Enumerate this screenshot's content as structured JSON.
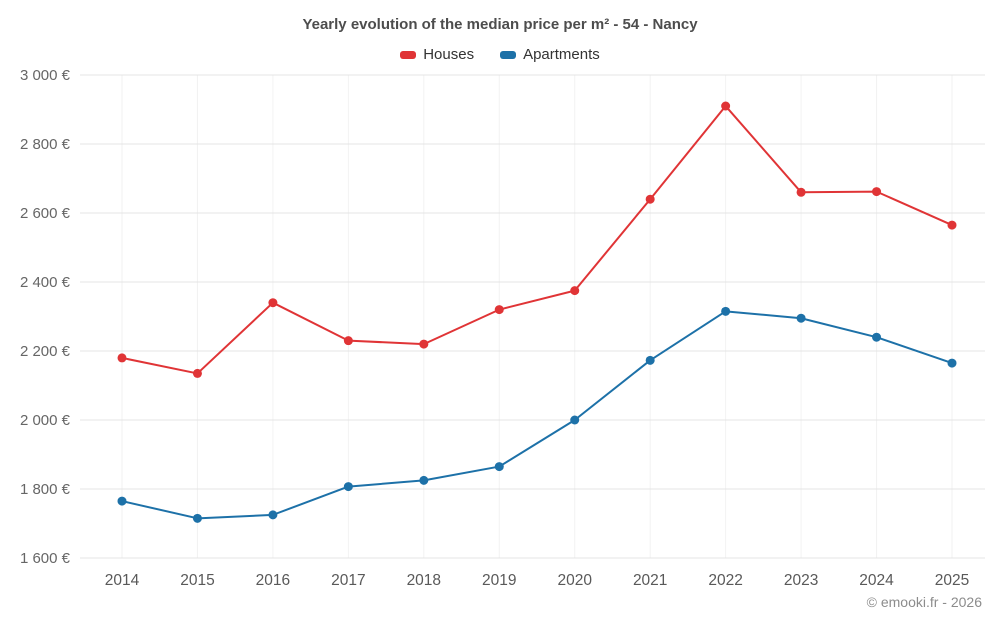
{
  "chart_data": {
    "type": "line",
    "title": "Yearly evolution of the median price per m² - 54 - Nancy",
    "categories": [
      "2014",
      "2015",
      "2016",
      "2017",
      "2018",
      "2019",
      "2020",
      "2021",
      "2022",
      "2023",
      "2024",
      "2025"
    ],
    "series": [
      {
        "name": "Houses",
        "color": "#e03436",
        "values": [
          2180,
          2135,
          2340,
          2230,
          2220,
          2320,
          2375,
          2640,
          2910,
          2660,
          2662,
          2565
        ]
      },
      {
        "name": "Apartments",
        "color": "#1d71a8",
        "values": [
          1765,
          1715,
          1725,
          1807,
          1825,
          1865,
          2000,
          2173,
          2315,
          2295,
          2240,
          2165
        ]
      }
    ],
    "ylim": [
      1600,
      3000
    ],
    "ytick_step": 200,
    "y_suffix": " €",
    "grid": true,
    "legend_position": "top",
    "xlabel": "",
    "ylabel": "",
    "copyright": "© emooki.fr - 2026"
  }
}
